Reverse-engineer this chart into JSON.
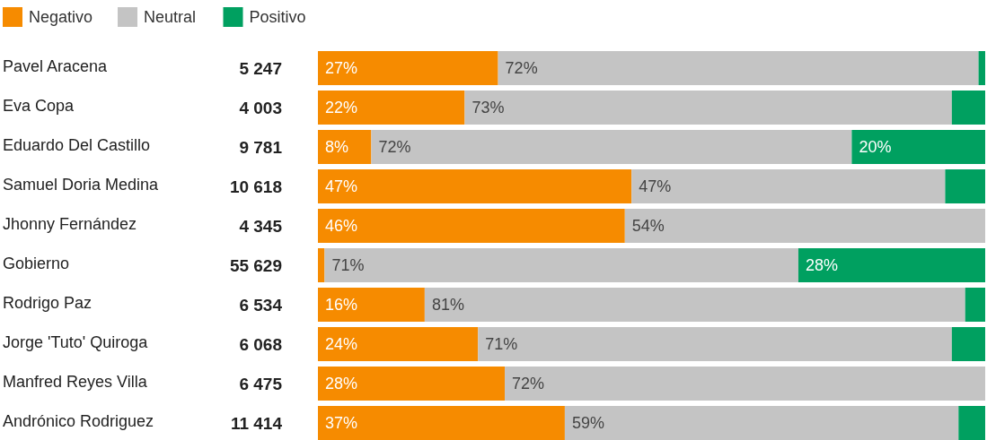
{
  "chart_data": {
    "type": "bar",
    "orientation": "horizontal",
    "stacked": true,
    "legend": "top left",
    "categories": [
      "Pavel Aracena",
      "Eva Copa",
      "Eduardo Del Castillo",
      "Samuel Doria Medina",
      "Jhonny Fernández",
      "Gobierno",
      "Rodrigo Paz",
      "Jorge 'Tuto' Quiroga",
      "Manfred Reyes Villa",
      "Andrónico Rodriguez"
    ],
    "series": [
      {
        "name": "Negativo",
        "color": "#f68b00",
        "values": [
          27,
          22,
          8,
          47,
          46,
          1,
          16,
          24,
          28,
          37
        ],
        "value_labels": [
          "27%",
          "22%",
          "8%",
          "47%",
          "46%",
          null,
          "16%",
          "24%",
          "28%",
          "37%"
        ]
      },
      {
        "name": "Neutral",
        "color": "#c4c4c4",
        "values": [
          72,
          73,
          72,
          47,
          54,
          71,
          81,
          71,
          72,
          59
        ],
        "value_labels": [
          "72%",
          "73%",
          "72%",
          "47%",
          "54%",
          "71%",
          "81%",
          "71%",
          "72%",
          "59%"
        ]
      },
      {
        "name": "Positivo",
        "color": "#00a060",
        "values": [
          1,
          5,
          20,
          6,
          0,
          28,
          3,
          5,
          0,
          4
        ],
        "value_labels": [
          null,
          null,
          "20%",
          null,
          null,
          "28%",
          null,
          null,
          null,
          null
        ]
      }
    ],
    "annotations": [
      "5 247",
      "4 003",
      "9 781",
      "10 618",
      "4 345",
      "55 629",
      "6 534",
      "6 068",
      "6 475",
      "11 414"
    ]
  }
}
